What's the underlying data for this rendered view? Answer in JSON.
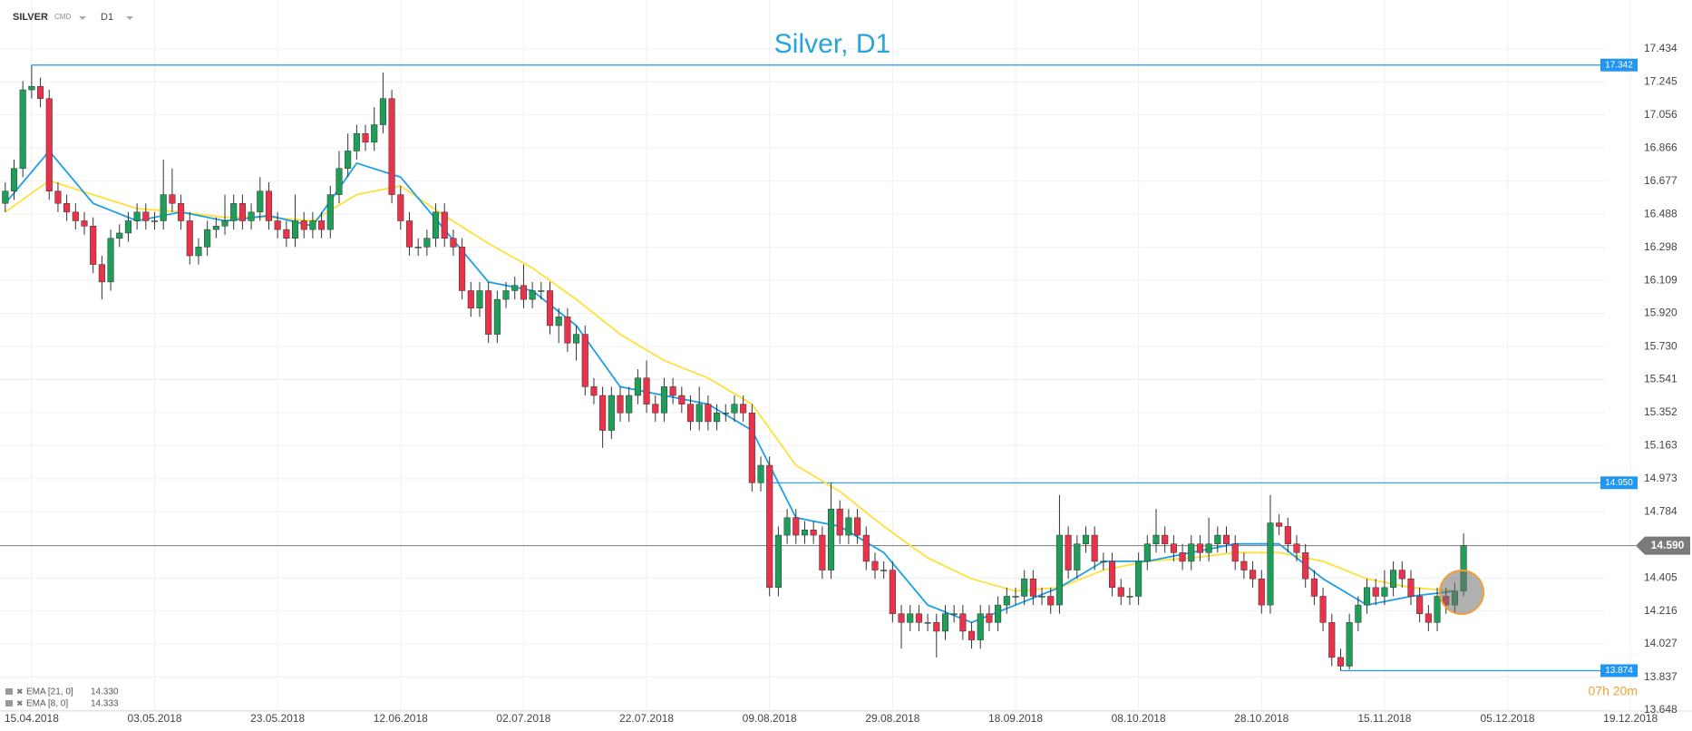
{
  "chart_data": {
    "type": "candlestick",
    "title": "Silver, D1",
    "symbol": "SILVER",
    "market": "CMD",
    "timeframe": "D1",
    "countdown": "07h 20m",
    "up_color": "#1f9e5a",
    "down_color": "#e8334a",
    "xlim": [
      -0.6,
      192
    ],
    "ylim": [
      13.648,
      17.434
    ],
    "yticks": [
      17.434,
      17.245,
      17.056,
      16.866,
      16.677,
      16.488,
      16.298,
      16.109,
      {
        "value": 15.92,
        "label": "15.920"
      },
      {
        "value": 15.73,
        "label": "15.730"
      },
      15.541,
      15.352,
      15.163,
      14.973,
      14.784,
      14.405,
      14.216,
      14.027,
      13.837,
      13.648
    ],
    "xticks": [
      {
        "value": 3,
        "label": "15.04.2018"
      },
      {
        "value": 17,
        "label": "03.05.2018"
      },
      {
        "value": 31,
        "label": "23.05.2018"
      },
      {
        "value": 45,
        "label": "12.06.2018"
      },
      {
        "value": 59,
        "label": "02.07.2018"
      },
      {
        "value": 73,
        "label": "22.07.2018"
      },
      {
        "value": 87,
        "label": "09.08.2018"
      },
      {
        "value": 101,
        "label": "29.08.2018"
      },
      {
        "value": 115,
        "label": "18.09.2018"
      },
      {
        "value": 129,
        "label": "08.10.2018"
      },
      {
        "value": 143,
        "label": "28.10.2018"
      },
      {
        "value": 157,
        "label": "15.11.2018"
      },
      {
        "value": 171,
        "label": "05.12.2018"
      },
      {
        "value": 185,
        "label": "19.12.2018"
      }
    ],
    "grid": true,
    "open": [
      16.55,
      16.62,
      16.75,
      17.2,
      17.22,
      17.15,
      16.62,
      16.55,
      16.5,
      16.45,
      16.42,
      16.2,
      16.1,
      16.35,
      16.38,
      16.45,
      16.5,
      16.45,
      16.45,
      16.6,
      16.55,
      16.45,
      16.25,
      16.3,
      16.4,
      16.42,
      16.45,
      16.55,
      16.45,
      16.5,
      16.62,
      16.45,
      16.4,
      16.35,
      16.45,
      16.4,
      16.45,
      16.4,
      16.6,
      16.75,
      16.85,
      16.95,
      16.9,
      17.0,
      17.15,
      16.6,
      16.45,
      16.3,
      16.3,
      16.35,
      16.5,
      16.35,
      16.3,
      16.05,
      15.95,
      16.05,
      15.8,
      16.0,
      16.05,
      16.08,
      16.0,
      16.05,
      16.05,
      15.85,
      15.9,
      15.75,
      15.8,
      15.5,
      15.45,
      15.25,
      15.45,
      15.35,
      15.45,
      15.55,
      15.4,
      15.35,
      15.5,
      15.45,
      15.4,
      15.3,
      15.4,
      15.3,
      15.35,
      15.35,
      15.4,
      15.35,
      14.95,
      15.05,
      14.35,
      14.65,
      14.75,
      14.65,
      14.68,
      14.65,
      14.45,
      14.8,
      14.65,
      14.75,
      14.65,
      14.5,
      14.45,
      14.45,
      14.2,
      14.15,
      14.2,
      14.15,
      14.15,
      14.1,
      14.2,
      14.2,
      14.1,
      14.05,
      14.2,
      14.15,
      14.25,
      14.3,
      14.3,
      14.4,
      14.3,
      14.3,
      14.25,
      14.65,
      14.45,
      14.6,
      14.65,
      14.5,
      14.5,
      14.35,
      14.3,
      14.3,
      14.5,
      14.6,
      14.65,
      14.6,
      14.55,
      14.5,
      14.6,
      14.55,
      14.6,
      14.65,
      14.6,
      14.5,
      14.45,
      14.4,
      14.25,
      14.72,
      14.7,
      14.6,
      14.55,
      14.4,
      14.3,
      14.15,
      13.95,
      13.9,
      14.15,
      14.25,
      14.35,
      14.3,
      14.35,
      14.45,
      14.4,
      14.3,
      14.2,
      14.15,
      14.3,
      14.25,
      14.33
    ],
    "high": [
      16.67,
      16.8,
      17.25,
      17.342,
      17.27,
      17.2,
      16.67,
      16.6,
      16.55,
      16.5,
      16.47,
      16.25,
      16.4,
      16.43,
      16.5,
      16.55,
      16.55,
      16.5,
      16.8,
      16.75,
      16.6,
      16.5,
      16.35,
      16.45,
      16.47,
      16.6,
      16.6,
      16.6,
      16.55,
      16.7,
      16.67,
      16.5,
      16.45,
      16.6,
      16.5,
      16.5,
      16.5,
      16.65,
      16.85,
      16.95,
      17.0,
      17.0,
      17.1,
      17.3,
      17.2,
      16.65,
      16.5,
      16.35,
      16.4,
      16.55,
      16.55,
      16.4,
      16.35,
      16.1,
      16.1,
      16.1,
      16.05,
      16.1,
      16.13,
      16.2,
      16.1,
      16.1,
      16.1,
      15.95,
      15.95,
      15.85,
      15.85,
      15.55,
      15.5,
      15.5,
      15.5,
      15.5,
      15.6,
      15.65,
      15.45,
      15.55,
      15.55,
      15.5,
      15.45,
      15.5,
      15.45,
      15.4,
      15.4,
      15.45,
      15.45,
      15.4,
      15.1,
      15.1,
      14.7,
      14.8,
      14.8,
      14.73,
      14.73,
      14.7,
      14.95,
      14.85,
      14.8,
      14.8,
      14.7,
      14.55,
      14.5,
      14.5,
      14.25,
      14.25,
      14.25,
      14.2,
      14.2,
      14.25,
      14.25,
      14.25,
      14.15,
      14.25,
      14.25,
      14.3,
      14.35,
      14.35,
      14.45,
      14.45,
      14.35,
      14.35,
      14.88,
      14.7,
      14.65,
      14.7,
      14.7,
      14.55,
      14.55,
      14.4,
      14.35,
      14.55,
      14.65,
      14.8,
      14.7,
      14.65,
      14.6,
      14.65,
      14.65,
      14.75,
      14.7,
      14.7,
      14.65,
      14.55,
      14.5,
      14.45,
      14.88,
      14.77,
      14.75,
      14.65,
      14.6,
      14.45,
      14.35,
      14.2,
      14.0,
      14.2,
      14.3,
      14.4,
      14.4,
      14.45,
      14.5,
      14.5,
      14.45,
      14.35,
      14.25,
      14.35,
      14.35,
      14.38,
      14.66
    ],
    "low": [
      16.5,
      16.57,
      16.7,
      17.15,
      17.1,
      16.57,
      16.5,
      16.45,
      16.4,
      16.37,
      16.15,
      16.0,
      16.05,
      16.3,
      16.33,
      16.4,
      16.4,
      16.4,
      16.4,
      16.5,
      16.4,
      16.2,
      16.2,
      16.25,
      16.35,
      16.37,
      16.4,
      16.4,
      16.4,
      16.45,
      16.4,
      16.35,
      16.3,
      16.3,
      16.35,
      16.35,
      16.35,
      16.35,
      16.55,
      16.7,
      16.8,
      16.85,
      16.85,
      16.95,
      16.55,
      16.4,
      16.25,
      16.25,
      16.25,
      16.3,
      16.3,
      16.25,
      16.0,
      15.9,
      15.9,
      15.75,
      15.75,
      15.95,
      16.0,
      15.95,
      15.95,
      16.0,
      15.8,
      15.75,
      15.7,
      15.65,
      15.45,
      15.4,
      15.15,
      15.2,
      15.3,
      15.3,
      15.4,
      15.35,
      15.3,
      15.3,
      15.4,
      15.35,
      15.25,
      15.25,
      15.25,
      15.25,
      15.3,
      15.3,
      15.3,
      14.9,
      14.9,
      14.3,
      14.3,
      14.6,
      14.6,
      14.6,
      14.6,
      14.4,
      14.4,
      14.6,
      14.6,
      14.6,
      14.45,
      14.4,
      14.4,
      14.15,
      14.0,
      14.1,
      14.1,
      14.1,
      13.95,
      14.05,
      14.15,
      14.05,
      14.0,
      14.0,
      14.1,
      14.1,
      14.2,
      14.25,
      14.25,
      14.25,
      14.25,
      14.2,
      14.2,
      14.4,
      14.4,
      14.55,
      14.45,
      14.45,
      14.3,
      14.25,
      14.25,
      14.25,
      14.45,
      14.55,
      14.55,
      14.5,
      14.45,
      14.45,
      14.5,
      14.5,
      14.55,
      14.55,
      14.45,
      14.4,
      14.35,
      14.2,
      14.2,
      14.65,
      14.55,
      14.5,
      14.35,
      14.25,
      14.1,
      13.9,
      13.874,
      13.88,
      14.1,
      14.2,
      14.25,
      14.25,
      14.3,
      14.35,
      14.25,
      14.15,
      14.1,
      14.1,
      14.2,
      14.2,
      14.3
    ],
    "close": [
      16.62,
      16.75,
      17.2,
      17.22,
      17.15,
      16.62,
      16.55,
      16.5,
      16.45,
      16.42,
      16.2,
      16.1,
      16.35,
      16.38,
      16.45,
      16.5,
      16.45,
      16.45,
      16.6,
      16.55,
      16.45,
      16.25,
      16.3,
      16.4,
      16.42,
      16.45,
      16.55,
      16.45,
      16.5,
      16.62,
      16.45,
      16.4,
      16.35,
      16.45,
      16.4,
      16.45,
      16.4,
      16.6,
      16.75,
      16.85,
      16.95,
      16.9,
      17.0,
      17.15,
      16.6,
      16.45,
      16.3,
      16.3,
      16.35,
      16.5,
      16.35,
      16.3,
      16.05,
      15.95,
      16.05,
      15.8,
      16.0,
      16.05,
      16.08,
      16.0,
      16.05,
      16.05,
      15.85,
      15.9,
      15.75,
      15.8,
      15.5,
      15.45,
      15.25,
      15.45,
      15.35,
      15.45,
      15.55,
      15.4,
      15.35,
      15.5,
      15.45,
      15.4,
      15.3,
      15.4,
      15.3,
      15.35,
      15.35,
      15.4,
      15.35,
      14.95,
      15.05,
      14.35,
      14.65,
      14.75,
      14.65,
      14.68,
      14.65,
      14.45,
      14.8,
      14.65,
      14.75,
      14.65,
      14.5,
      14.45,
      14.45,
      14.2,
      14.15,
      14.2,
      14.15,
      14.15,
      14.1,
      14.2,
      14.2,
      14.1,
      14.05,
      14.2,
      14.15,
      14.25,
      14.3,
      14.3,
      14.4,
      14.3,
      14.3,
      14.25,
      14.65,
      14.45,
      14.6,
      14.65,
      14.5,
      14.5,
      14.35,
      14.3,
      14.3,
      14.5,
      14.6,
      14.65,
      14.6,
      14.55,
      14.5,
      14.6,
      14.55,
      14.6,
      14.65,
      14.6,
      14.5,
      14.45,
      14.4,
      14.25,
      14.72,
      14.7,
      14.6,
      14.55,
      14.4,
      14.3,
      14.15,
      13.95,
      13.9,
      14.15,
      14.25,
      14.35,
      14.3,
      14.35,
      14.45,
      14.4,
      14.3,
      14.2,
      14.15,
      14.3,
      14.25,
      14.33,
      14.59
    ],
    "series": [
      {
        "name": "EMA [21, 0]",
        "last_label": "14.330",
        "color": "#ffe03a",
        "x": [
          0,
          5,
          10,
          15,
          20,
          25,
          30,
          35,
          40,
          45,
          50,
          55,
          60,
          65,
          70,
          75,
          80,
          85,
          90,
          95,
          100,
          105,
          110,
          115,
          120,
          125,
          130,
          135,
          140,
          145,
          150,
          155,
          160,
          165
        ],
        "values": [
          16.5,
          16.68,
          16.6,
          16.52,
          16.5,
          16.47,
          16.47,
          16.45,
          16.6,
          16.65,
          16.48,
          16.32,
          16.18,
          16.0,
          15.8,
          15.65,
          15.55,
          15.4,
          15.05,
          14.9,
          14.7,
          14.52,
          14.4,
          14.33,
          14.35,
          14.45,
          14.5,
          14.52,
          14.55,
          14.55,
          14.5,
          14.4,
          14.35,
          14.33
        ]
      },
      {
        "name": "EMA [8, 0]",
        "last_label": "14.333",
        "color": "#1e9fe6",
        "x": [
          0,
          5,
          10,
          15,
          20,
          25,
          30,
          35,
          40,
          45,
          50,
          55,
          60,
          65,
          70,
          75,
          80,
          85,
          90,
          95,
          100,
          105,
          110,
          115,
          120,
          125,
          130,
          135,
          140,
          145,
          150,
          155,
          160,
          165
        ],
        "values": [
          16.55,
          16.85,
          16.55,
          16.45,
          16.5,
          16.45,
          16.48,
          16.42,
          16.78,
          16.7,
          16.4,
          16.1,
          16.05,
          15.85,
          15.5,
          15.45,
          15.4,
          15.25,
          14.75,
          14.7,
          14.55,
          14.25,
          14.15,
          14.25,
          14.35,
          14.5,
          14.5,
          14.55,
          14.6,
          14.6,
          14.4,
          14.25,
          14.3,
          14.33
        ]
      }
    ],
    "levels": [
      {
        "value": 17.342,
        "from": 3,
        "color": "#2196f3"
      },
      {
        "value": 14.95,
        "label": "14.950",
        "from": 87,
        "color": "#2196f3"
      },
      {
        "value": 13.874,
        "from": 152,
        "color": "#2196f3"
      }
    ],
    "current_price": {
      "value": 14.59,
      "label": "14.590",
      "color": "#7a7a7a"
    }
  }
}
